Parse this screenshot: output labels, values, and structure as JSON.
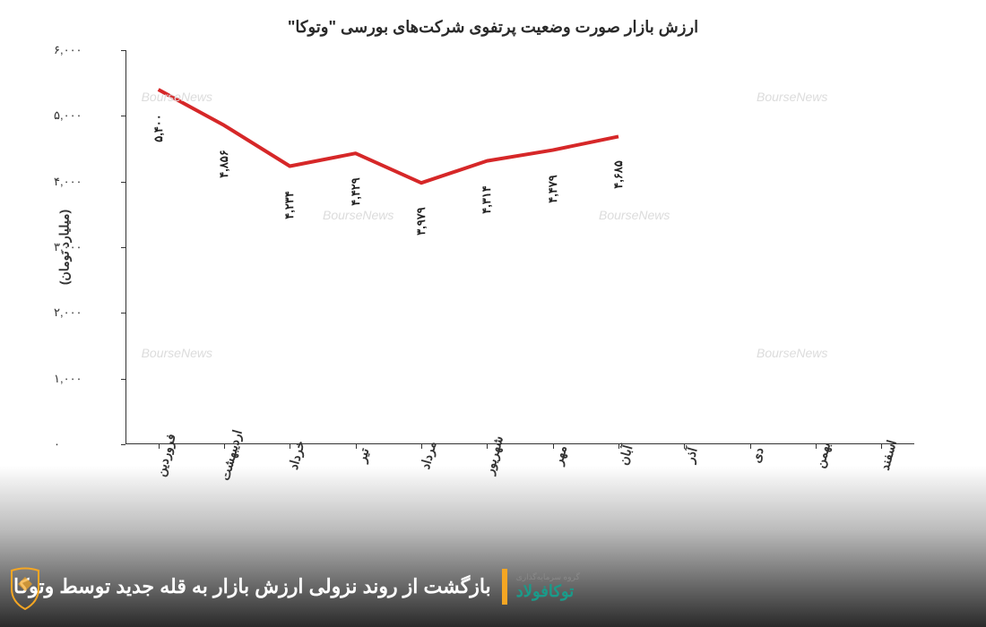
{
  "chart": {
    "type": "line",
    "title": "ارزش بازار صورت وضعیت پرتفوی شرکت‌های بورسی \"وتوکا\"",
    "ylabel": "(میلیارد تومان)",
    "ylim": [
      0,
      6000
    ],
    "ytick_step": 1000,
    "yticks": [
      0,
      1000,
      2000,
      3000,
      4000,
      5000,
      6000
    ],
    "ytick_labels": [
      "۰",
      "۱,۰۰۰",
      "۲,۰۰۰",
      "۳,۰۰۰",
      "۴,۰۰۰",
      "۵,۰۰۰",
      "۶,۰۰۰"
    ],
    "categories": [
      "فروردین",
      "اردیبهشت",
      "خرداد",
      "تیر",
      "مرداد",
      "شهریور",
      "مهر",
      "آبان",
      "آذر",
      "دی",
      "بهمن",
      "اسفند"
    ],
    "values": [
      5400,
      4856,
      4234,
      4429,
      3979,
      4314,
      4479,
      4685,
      null,
      null,
      null,
      null
    ],
    "data_labels": [
      "۵,۴۰۰",
      "۴,۸۵۶",
      "۴,۲۳۴",
      "۴,۴۲۹",
      "۳,۹۷۹",
      "۴,۳۱۴",
      "۴,۴۷۹",
      "۴,۶۸۵"
    ],
    "line_color": "#d62728",
    "line_width": 4,
    "background_color": "#ffffff",
    "axis_color": "#333333",
    "title_fontsize": 18,
    "label_fontsize": 14,
    "data_label_fontsize": 13,
    "watermark_text": "BourseNews",
    "watermark_color": "#dcdcdc"
  },
  "caption": {
    "text": "بازگشت از روند نزولی ارزش بازار به قله جدید توسط وتوکا",
    "accent_color": "#f5a623",
    "text_color": "#ffffff"
  },
  "logo": {
    "top_text": "گروه سرمایه‌گذاری",
    "main_text": "توکافولاد",
    "main_color": "#1a9b8a"
  }
}
